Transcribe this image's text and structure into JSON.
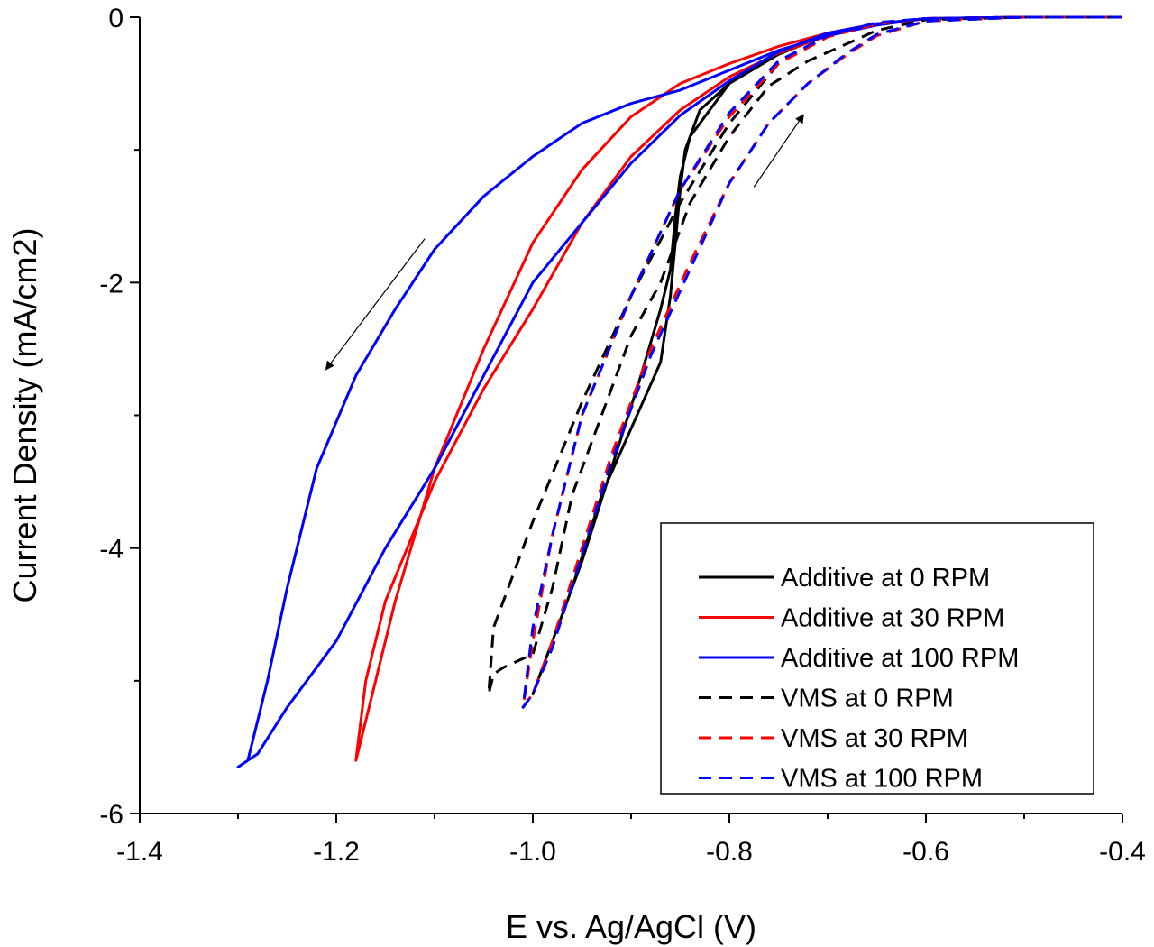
{
  "chart_data": {
    "type": "line",
    "title": "",
    "xlabel": "E vs. Ag/AgCl (V)",
    "ylabel": "Current Density (mA/cm2)",
    "xlim": [
      -1.4,
      -0.4
    ],
    "ylim": [
      -6,
      0
    ],
    "x_ticks": [
      -1.4,
      -1.2,
      -1.0,
      -0.8,
      -0.6,
      -0.4
    ],
    "x_tick_labels": [
      "-1.4",
      "-1.2",
      "-1.0",
      "-0.8",
      "-0.6",
      "-0.4"
    ],
    "y_ticks": [
      0,
      -2,
      -4,
      -6
    ],
    "y_tick_labels": [
      "0",
      "-2",
      "-4",
      "-6"
    ],
    "legend_position": "bottom-right",
    "series": [
      {
        "name": "Additive at 0 RPM",
        "color": "#000000",
        "dash": "solid",
        "x": [
          -0.4,
          -0.5,
          -0.6,
          -0.65,
          -0.7,
          -0.75,
          -0.8,
          -0.83,
          -0.845,
          -0.85,
          -0.855,
          -0.86,
          -0.87,
          -0.9,
          -0.93,
          -0.96,
          -0.98,
          -1.0,
          -0.995,
          -0.98,
          -0.95,
          -0.92,
          -0.89,
          -0.87,
          -0.86,
          -0.855,
          -0.85,
          -0.84,
          -0.8,
          -0.75,
          -0.7,
          -0.65,
          -0.6,
          -0.5,
          -0.4
        ],
        "y": [
          0,
          0,
          -0.01,
          -0.05,
          -0.12,
          -0.28,
          -0.5,
          -0.7,
          -1.0,
          -1.3,
          -1.7,
          -2.1,
          -2.6,
          -3.1,
          -3.6,
          -4.3,
          -4.7,
          -5.1,
          -5.0,
          -4.7,
          -4.1,
          -3.4,
          -2.7,
          -2.2,
          -1.9,
          -1.5,
          -1.2,
          -0.9,
          -0.5,
          -0.28,
          -0.13,
          -0.05,
          -0.01,
          0,
          0
        ]
      },
      {
        "name": "Additive at 30 RPM",
        "color": "#ff0000",
        "dash": "solid",
        "x": [
          -0.4,
          -0.5,
          -0.6,
          -0.65,
          -0.7,
          -0.75,
          -0.8,
          -0.85,
          -0.9,
          -0.95,
          -1.0,
          -1.05,
          -1.1,
          -1.15,
          -1.17,
          -1.18,
          -1.17,
          -1.14,
          -1.1,
          -1.05,
          -1.0,
          -0.95,
          -0.9,
          -0.85,
          -0.8,
          -0.75,
          -0.7,
          -0.65,
          -0.6,
          -0.5,
          -0.4
        ],
        "y": [
          0,
          0,
          -0.01,
          -0.06,
          -0.14,
          -0.27,
          -0.45,
          -0.7,
          -1.05,
          -1.55,
          -2.2,
          -2.8,
          -3.5,
          -4.4,
          -5.0,
          -5.6,
          -5.3,
          -4.4,
          -3.4,
          -2.5,
          -1.7,
          -1.15,
          -0.75,
          -0.5,
          -0.35,
          -0.22,
          -0.12,
          -0.05,
          -0.01,
          0,
          0
        ]
      },
      {
        "name": "Additive at 100 RPM",
        "color": "#0000ff",
        "dash": "solid",
        "x": [
          -0.4,
          -0.5,
          -0.6,
          -0.65,
          -0.7,
          -0.75,
          -0.8,
          -0.85,
          -0.9,
          -0.95,
          -1.0,
          -1.05,
          -1.1,
          -1.15,
          -1.2,
          -1.25,
          -1.28,
          -1.3,
          -1.29,
          -1.27,
          -1.25,
          -1.22,
          -1.18,
          -1.14,
          -1.1,
          -1.05,
          -1.0,
          -0.95,
          -0.9,
          -0.85,
          -0.8,
          -0.75,
          -0.7,
          -0.65,
          -0.6,
          -0.5,
          -0.4
        ],
        "y": [
          0,
          0,
          -0.01,
          -0.05,
          -0.12,
          -0.26,
          -0.48,
          -0.74,
          -1.1,
          -1.55,
          -2.0,
          -2.7,
          -3.4,
          -4.0,
          -4.7,
          -5.2,
          -5.55,
          -5.65,
          -5.6,
          -5.0,
          -4.3,
          -3.4,
          -2.7,
          -2.2,
          -1.75,
          -1.35,
          -1.05,
          -0.8,
          -0.65,
          -0.55,
          -0.4,
          -0.25,
          -0.14,
          -0.06,
          -0.01,
          0,
          0
        ]
      },
      {
        "name": "VMS at 0 RPM",
        "color": "#000000",
        "dash": "dashed",
        "x": [
          -0.4,
          -0.5,
          -0.6,
          -0.65,
          -0.7,
          -0.75,
          -0.8,
          -0.85,
          -0.9,
          -0.95,
          -1.0,
          -1.04,
          -1.045,
          -1.04,
          -1.03,
          -1.0,
          -0.98,
          -0.96,
          -0.93,
          -0.9,
          -0.87,
          -0.84,
          -0.8,
          -0.76,
          -0.72,
          -0.68,
          -0.65,
          -0.6,
          -0.5,
          -0.4
        ],
        "y": [
          0,
          0,
          -0.01,
          -0.05,
          -0.14,
          -0.35,
          -0.8,
          -1.4,
          -2.1,
          -2.9,
          -3.8,
          -4.6,
          -5.1,
          -4.95,
          -4.9,
          -4.8,
          -4.3,
          -3.6,
          -3.0,
          -2.4,
          -2.0,
          -1.4,
          -0.9,
          -0.52,
          -0.33,
          -0.2,
          -0.1,
          -0.02,
          0,
          0
        ]
      },
      {
        "name": "VMS at 30 RPM",
        "color": "#ff0000",
        "dash": "dashed",
        "x": [
          -0.4,
          -0.5,
          -0.6,
          -0.65,
          -0.7,
          -0.75,
          -0.8,
          -0.85,
          -0.9,
          -0.95,
          -0.98,
          -1.0,
          -1.01,
          -1.0,
          -0.98,
          -0.95,
          -0.92,
          -0.88,
          -0.84,
          -0.8,
          -0.76,
          -0.72,
          -0.68,
          -0.65,
          -0.6,
          -0.5,
          -0.4
        ],
        "y": [
          0,
          0,
          -0.01,
          -0.05,
          -0.15,
          -0.35,
          -0.75,
          -1.3,
          -2.1,
          -3.0,
          -3.9,
          -4.7,
          -5.2,
          -5.1,
          -4.7,
          -4.0,
          -3.3,
          -2.5,
          -1.85,
          -1.25,
          -0.8,
          -0.5,
          -0.28,
          -0.14,
          -0.03,
          0,
          0
        ]
      },
      {
        "name": "VMS at 100 RPM",
        "color": "#0000ff",
        "dash": "dashed",
        "x": [
          -0.4,
          -0.5,
          -0.6,
          -0.65,
          -0.7,
          -0.75,
          -0.8,
          -0.85,
          -0.9,
          -0.95,
          -0.98,
          -1.0,
          -1.01,
          -1.0,
          -0.98,
          -0.95,
          -0.92,
          -0.88,
          -0.84,
          -0.8,
          -0.76,
          -0.72,
          -0.68,
          -0.65,
          -0.6,
          -0.5,
          -0.4
        ],
        "y": [
          0,
          0,
          -0.01,
          -0.04,
          -0.14,
          -0.33,
          -0.72,
          -1.3,
          -2.1,
          -3.0,
          -3.9,
          -4.6,
          -5.2,
          -5.1,
          -4.75,
          -4.05,
          -3.35,
          -2.55,
          -1.9,
          -1.25,
          -0.8,
          -0.5,
          -0.27,
          -0.13,
          -0.03,
          0,
          0
        ]
      }
    ],
    "annotations": [
      {
        "type": "arrow",
        "direction": "forward scan (cathodic)",
        "from": [
          -1.11,
          -1.67
        ],
        "to": [
          -1.21,
          -2.65
        ]
      },
      {
        "type": "arrow",
        "direction": "reverse scan (anodic)",
        "from": [
          -0.775,
          -1.28
        ],
        "to": [
          -0.725,
          -0.74
        ]
      }
    ]
  }
}
